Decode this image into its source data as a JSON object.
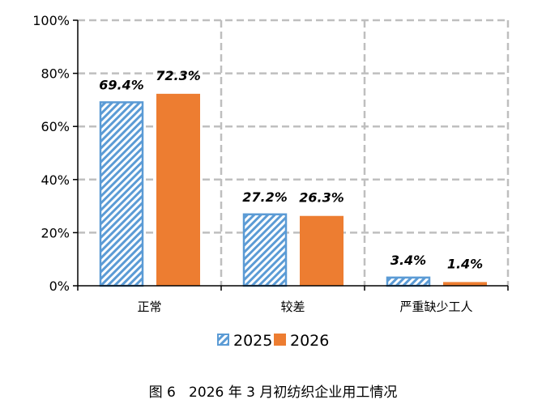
{
  "chart_data": {
    "type": "bar",
    "title": "",
    "caption": "图 6   2026 年 3 月初纺织企业用工情况",
    "categories": [
      "正常",
      "较差",
      "严重缺少工人"
    ],
    "series": [
      {
        "name": "2025",
        "values": [
          69.4,
          27.2,
          3.4
        ],
        "labels": [
          "69.4%",
          "27.2%",
          "3.4%"
        ],
        "color": "#5B9BD5",
        "pattern": "diagonal-hatch"
      },
      {
        "name": "2026",
        "values": [
          72.3,
          26.3,
          1.4
        ],
        "labels": [
          "72.3%",
          "26.3%",
          "1.4%"
        ],
        "color": "#ED7D31",
        "pattern": "solid"
      }
    ],
    "ylim": [
      0,
      100
    ],
    "yticks": [
      0,
      20,
      40,
      60,
      80,
      100
    ],
    "ytick_labels": [
      "0%",
      "20%",
      "40%",
      "60%",
      "80%",
      "100%"
    ],
    "xlabel": "",
    "ylabel": "",
    "grid": true,
    "legend": "bottom-center"
  }
}
